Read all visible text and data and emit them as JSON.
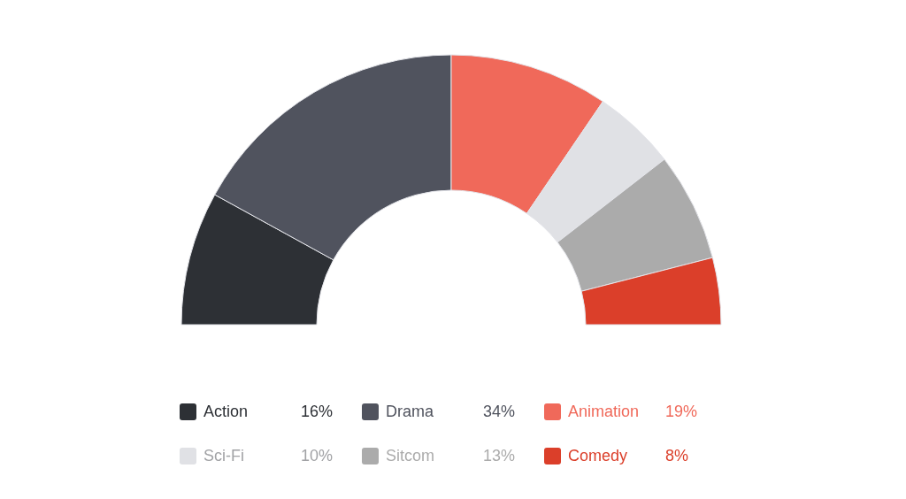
{
  "chart_data": {
    "type": "donut",
    "categories": [
      "Action",
      "Drama",
      "Animation",
      "Sci-Fi",
      "Sitcom",
      "Comedy"
    ],
    "values": [
      16,
      34,
      19,
      10,
      13,
      8
    ],
    "colors": [
      "#2d3035",
      "#50535e",
      "#f0695a",
      "#e0e1e5",
      "#ababab",
      "#db3f2a"
    ],
    "value_labels": [
      "16%",
      "34%",
      "19%",
      "10%",
      "13%",
      "8%"
    ],
    "legend": "bottom"
  }
}
